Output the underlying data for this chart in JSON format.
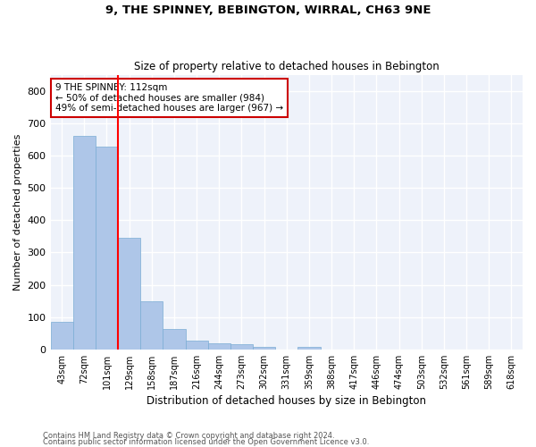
{
  "title": "9, THE SPINNEY, BEBINGTON, WIRRAL, CH63 9NE",
  "subtitle": "Size of property relative to detached houses in Bebington",
  "xlabel": "Distribution of detached houses by size in Bebington",
  "ylabel": "Number of detached properties",
  "categories": [
    "43sqm",
    "72sqm",
    "101sqm",
    "129sqm",
    "158sqm",
    "187sqm",
    "216sqm",
    "244sqm",
    "273sqm",
    "302sqm",
    "331sqm",
    "359sqm",
    "388sqm",
    "417sqm",
    "446sqm",
    "474sqm",
    "503sqm",
    "532sqm",
    "561sqm",
    "589sqm",
    "618sqm"
  ],
  "values": [
    84,
    662,
    628,
    346,
    148,
    63,
    27,
    20,
    15,
    7,
    0,
    7,
    0,
    0,
    0,
    0,
    0,
    0,
    0,
    0,
    0
  ],
  "bar_color": "#aec6e8",
  "bar_edge_color": "#7aacd4",
  "red_line_index": 2,
  "annotation_text": "9 THE SPINNEY: 112sqm\n← 50% of detached houses are smaller (984)\n49% of semi-detached houses are larger (967) →",
  "annotation_box_color": "#ffffff",
  "annotation_box_edge": "#cc0000",
  "ylim": [
    0,
    850
  ],
  "yticks": [
    0,
    100,
    200,
    300,
    400,
    500,
    600,
    700,
    800
  ],
  "background_color": "#eef2fa",
  "grid_color": "#ffffff",
  "footer_line1": "Contains HM Land Registry data © Crown copyright and database right 2024.",
  "footer_line2": "Contains public sector information licensed under the Open Government Licence v3.0."
}
